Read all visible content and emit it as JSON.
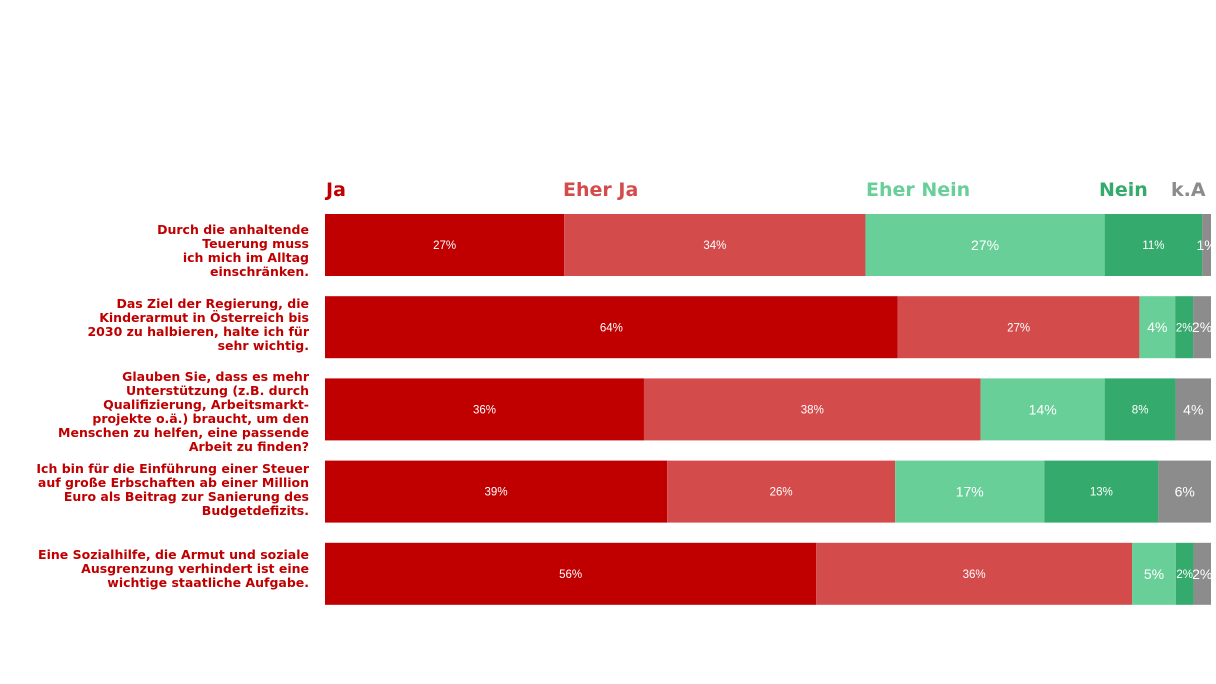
{
  "chart_data": {
    "type": "bar",
    "orientation": "horizontal",
    "stacked": "100%",
    "legend_position": "top",
    "grid": false,
    "categories": [
      "Durch die anhaltende\nTeuerung muss\nich mich im Alltag\neinschränken.",
      "Das Ziel der Regierung, die\nKinderarmut in Österreich bis\n2030 zu halbieren, halte ich für\nsehr wichtig.",
      "Glauben Sie, dass es mehr\nUnterstützung (z.B. durch\nQualifizierung, Arbeitsmarkt-\nprojekte o.ä.) braucht, um den\nMenschen zu helfen, eine passende\nArbeit zu finden?",
      "Ich bin für die Einführung einer Steuer\nauf große Erbschaften ab einer Million\nEuro als Beitrag zur Sanierung des\nBudgetdefizits.",
      "Eine Sozialhilfe, die Armut und soziale\nAusgrenzung verhindert ist eine\nwichtige staatliche Aufgabe."
    ],
    "series": [
      {
        "name": "Ja",
        "color": "#c00000",
        "legend_color": "#c00000",
        "values": [
          27,
          64,
          36,
          39,
          56
        ],
        "labels": [
          "27%",
          "64%",
          "36%",
          "39%",
          "56%"
        ]
      },
      {
        "name": "Eher Ja",
        "color": "#d44b4c",
        "legend_color": "#d44b4c",
        "values": [
          34,
          27,
          38,
          26,
          36
        ],
        "labels": [
          "34%",
          "27%",
          "38%",
          "26%",
          "36%"
        ]
      },
      {
        "name": "Eher Nein",
        "color": "#69cf99",
        "legend_color": "#69cf99",
        "values": [
          27,
          4,
          14,
          17,
          5
        ],
        "labels": [
          "27%",
          "4%",
          "14%",
          "17%",
          "5%"
        ]
      },
      {
        "name": "Nein",
        "color": "#34aa6c",
        "legend_color": "#34aa6c",
        "values": [
          11,
          2,
          8,
          13,
          2
        ],
        "labels": [
          "11%",
          "2%",
          "8%",
          "13%",
          "2%"
        ]
      },
      {
        "name": "k.A",
        "color": "#8c8c8c",
        "legend_color": "#8c8c8c",
        "values": [
          1,
          2,
          4,
          6,
          2
        ],
        "labels": [
          "1%",
          "2%",
          "4%",
          "6%",
          "2%"
        ]
      }
    ]
  }
}
